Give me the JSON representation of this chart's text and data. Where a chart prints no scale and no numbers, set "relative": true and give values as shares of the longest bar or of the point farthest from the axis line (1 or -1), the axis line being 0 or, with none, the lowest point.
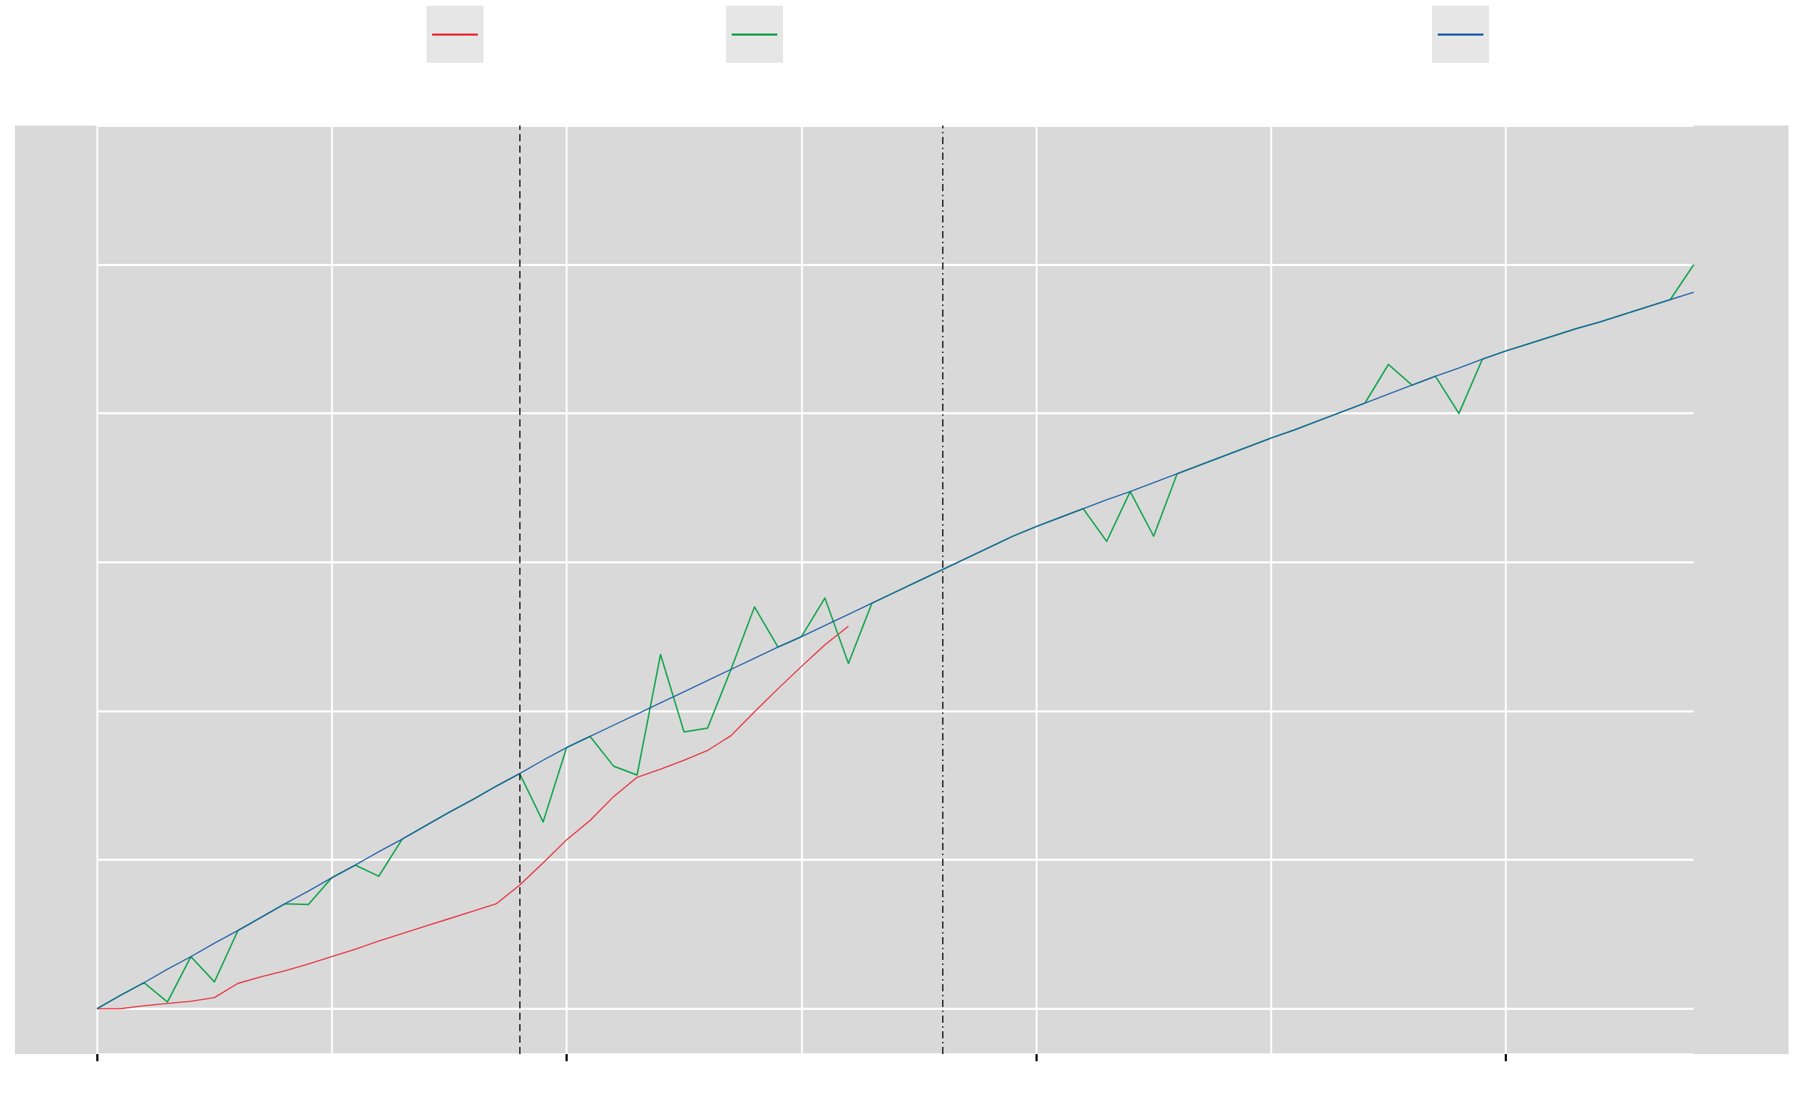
{
  "chart_data": {
    "type": "line",
    "relative": true,
    "grid": true,
    "marker": "none",
    "categories": [
      null,
      null,
      null,
      null,
      null,
      null,
      null,
      null,
      null,
      null,
      null,
      null,
      null,
      null,
      null,
      null,
      null,
      null,
      null,
      null,
      null,
      null,
      null,
      null,
      null,
      null,
      null,
      null,
      null,
      null,
      null,
      null,
      null,
      null,
      null,
      null,
      null,
      null,
      null,
      null,
      null,
      null,
      null,
      null,
      null,
      null,
      null,
      null,
      null,
      null,
      null,
      null,
      null,
      null,
      null,
      null,
      null,
      null,
      null,
      null,
      null,
      null,
      null,
      null,
      null,
      null,
      null,
      null,
      null
    ],
    "series": [
      {
        "color": "#e8303a",
        "values": [
          0,
          0,
          0.004,
          0.007,
          0.01,
          0.015,
          0.034,
          0.043,
          0.051,
          0.06,
          0.07,
          0.08,
          0.091,
          0.101,
          0.111,
          0.121,
          0.131,
          0.141,
          0.166,
          0.196,
          0.227,
          0.253,
          0.285,
          0.311,
          0.322,
          0.334,
          0.347,
          0.367,
          0.399,
          0.43,
          0.46,
          0.489,
          0.514,
          null,
          null,
          null,
          null,
          null,
          null,
          null,
          null,
          null,
          null,
          null,
          null,
          null,
          null,
          null,
          null,
          null,
          null,
          null,
          null,
          null,
          null,
          null,
          null,
          null,
          null,
          null,
          null,
          null,
          null,
          null,
          null,
          null,
          null,
          null,
          null
        ]
      },
      {
        "color": "#10a44a",
        "values": [
          0,
          0.018,
          0.035,
          0.009,
          0.07,
          0.036,
          0.105,
          0.123,
          0.141,
          0.14,
          0.176,
          0.193,
          0.178,
          0.228,
          0.246,
          0.264,
          0.281,
          0.299,
          0.316,
          0.251,
          0.351,
          0.366,
          0.326,
          0.314,
          0.476,
          0.372,
          0.377,
          0.456,
          0.54,
          0.486,
          0.5,
          0.552,
          0.464,
          0.545,
          0.56,
          0.575,
          0.59,
          0.605,
          0.62,
          0.635,
          0.648,
          0.66,
          0.672,
          0.628,
          0.695,
          0.635,
          0.719,
          0.731,
          0.743,
          0.755,
          0.767,
          0.778,
          0.79,
          0.802,
          0.814,
          0.866,
          0.838,
          0.85,
          0.8,
          0.873,
          0.884,
          0.894,
          0.904,
          0.914,
          0.923,
          0.933,
          0.943,
          0.953,
          1.0
        ]
      },
      {
        "color": "#1f5fa8",
        "values": [
          0,
          0.018,
          0.035,
          0.053,
          0.07,
          0.088,
          0.105,
          0.123,
          0.141,
          0.158,
          0.176,
          0.193,
          0.211,
          0.228,
          0.246,
          0.264,
          0.281,
          0.299,
          0.316,
          0.334,
          0.351,
          0.366,
          0.381,
          0.396,
          0.411,
          0.426,
          0.441,
          0.456,
          0.471,
          0.486,
          0.5,
          0.515,
          0.53,
          0.545,
          0.56,
          0.575,
          0.59,
          0.605,
          0.62,
          0.635,
          0.648,
          0.66,
          0.672,
          0.684,
          0.695,
          0.707,
          0.719,
          0.731,
          0.743,
          0.755,
          0.767,
          0.778,
          0.79,
          0.802,
          0.814,
          0.826,
          0.838,
          0.85,
          0.861,
          0.873,
          0.884,
          0.894,
          0.904,
          0.914,
          0.923,
          0.933,
          0.943,
          0.953,
          0.963
        ]
      }
    ]
  }
}
